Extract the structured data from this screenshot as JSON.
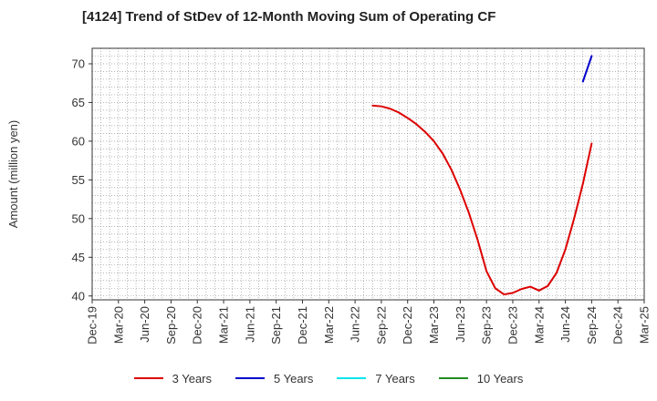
{
  "chart_data": {
    "type": "line",
    "title": "[4124]  Trend of StDev of 12-Month Moving Sum of Operating CF",
    "ylabel": "Amount (million yen)",
    "xlabel": "",
    "ylim": [
      39.5,
      72
    ],
    "y_ticks": [
      40,
      45,
      50,
      55,
      60,
      65,
      70
    ],
    "x_ticks": [
      "Dec-19",
      "Mar-20",
      "Jun-20",
      "Sep-20",
      "Dec-20",
      "Mar-21",
      "Jun-21",
      "Sep-21",
      "Dec-21",
      "Mar-22",
      "Jun-22",
      "Sep-22",
      "Dec-22",
      "Mar-23",
      "Jun-23",
      "Sep-23",
      "Dec-23",
      "Mar-24",
      "Jun-24",
      "Sep-24",
      "Dec-24",
      "Mar-25"
    ],
    "grid": true,
    "legend_position": "bottom",
    "series": [
      {
        "name": "3 Years",
        "color": "#dd0000",
        "x": [
          "Aug-22",
          "Sep-22",
          "Oct-22",
          "Nov-22",
          "Dec-22",
          "Jan-23",
          "Feb-23",
          "Mar-23",
          "Apr-23",
          "May-23",
          "Jun-23",
          "Jul-23",
          "Aug-23",
          "Sep-23",
          "Oct-23",
          "Nov-23",
          "Dec-23",
          "Jan-24",
          "Feb-24",
          "Mar-24",
          "Apr-24",
          "May-24",
          "Jun-24",
          "Jul-24",
          "Aug-24",
          "Sep-24"
        ],
        "values": [
          64.6,
          64.5,
          64.2,
          63.7,
          63.0,
          62.2,
          61.2,
          60.0,
          58.4,
          56.3,
          53.7,
          50.7,
          47.2,
          43.2,
          41.0,
          40.2,
          40.4,
          40.9,
          41.2,
          40.7,
          41.3,
          43.0,
          46.0,
          50.0,
          54.5,
          59.7
        ]
      },
      {
        "name": "5 Years",
        "color": "#0000cc",
        "x": [
          "Aug-24",
          "Sep-24"
        ],
        "values": [
          67.7,
          71.0
        ]
      },
      {
        "name": "7 Years",
        "color": "#00e5ee",
        "x": [],
        "values": []
      },
      {
        "name": "10 Years",
        "color": "#228b22",
        "x": [],
        "values": []
      }
    ]
  }
}
